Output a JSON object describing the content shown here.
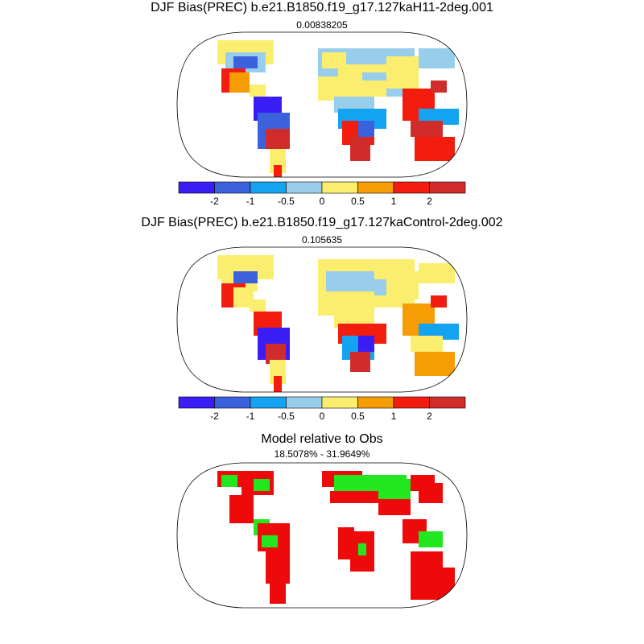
{
  "panels": [
    {
      "title": "DJF Bias(PREC) b.e21.B1850.f19_g17.127kaH11-2deg.001",
      "subtitle": "0.00838205"
    },
    {
      "title": "DJF Bias(PREC) b.e21.B1850.f19_g17.127kaControl-2deg.002",
      "subtitle": "0.105635"
    },
    {
      "title": "Model relative to Obs",
      "subtitle": "18.5078% - 31.9649%"
    }
  ],
  "colorbar": {
    "colors": [
      "#3a1cf5",
      "#3b62dc",
      "#14a3f0",
      "#98ceec",
      "#fbed6d",
      "#f69c05",
      "#f21d0f",
      "#d12c2c"
    ],
    "tick_labels": [
      "-2",
      "-1",
      "-0.5",
      "0",
      "0.5",
      "1",
      "2"
    ]
  },
  "relative_colors": {
    "better": "#22e61e",
    "worse": "#ee0a0a"
  }
}
